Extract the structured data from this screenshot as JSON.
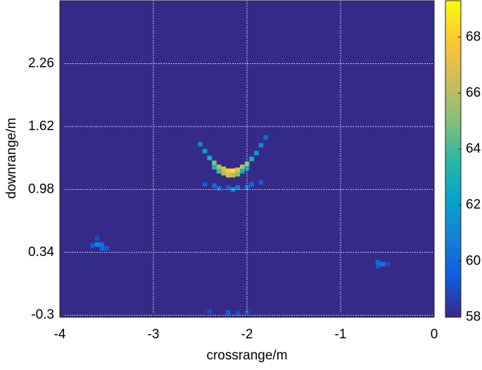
{
  "chart_data": {
    "type": "heatmap",
    "xlabel": "crossrange/m",
    "ylabel": "downrange/m",
    "xlim": [
      -4,
      0
    ],
    "xticks": [
      -4,
      -3,
      -2,
      -1,
      0
    ],
    "ylim": [
      -0.32,
      2.9
    ],
    "yticks": [
      -0.3,
      0.34,
      0.98,
      1.62,
      2.26
    ],
    "clim": [
      58,
      69.3
    ],
    "cticks": [
      58,
      60,
      62,
      64,
      66,
      68
    ],
    "grid": true,
    "colormap": [
      "#352a87",
      "#0f5cdd",
      "#1481d6",
      "#06a4ca",
      "#2eb7a4",
      "#87bf77",
      "#d1bb59",
      "#fec832",
      "#f9fb0e"
    ],
    "cells": {
      "x": [
        -2.5,
        -2.45,
        -2.4,
        -2.35,
        -2.3,
        -2.25,
        -2.2,
        -2.15,
        -2.1,
        -2.05,
        -2.0,
        -1.95,
        -1.9,
        -1.85,
        -1.8,
        -2.35,
        -2.3,
        -2.25,
        -2.2,
        -2.15,
        -2.1,
        -2.05,
        -2.0,
        -2.45,
        -2.35,
        -2.3,
        -2.2,
        -2.1,
        -2.0,
        -1.95,
        -1.85,
        -2.15,
        -3.6,
        -3.55,
        -3.65,
        -3.55,
        -3.5,
        -3.6,
        -0.6,
        -0.55,
        -0.6,
        -0.5,
        -2.4,
        -2.2,
        -2.1,
        -2.0
      ],
      "y": [
        1.44,
        1.37,
        1.3,
        1.25,
        1.21,
        1.19,
        1.17,
        1.17,
        1.18,
        1.21,
        1.24,
        1.29,
        1.35,
        1.43,
        1.51,
        1.205,
        1.165,
        1.145,
        1.125,
        1.125,
        1.135,
        1.165,
        1.195,
        1.03,
        1.02,
        0.99,
        1.0,
        1.0,
        1.0,
        1.03,
        1.05,
        0.98,
        0.42,
        0.42,
        0.41,
        0.38,
        0.38,
        0.48,
        0.24,
        0.22,
        0.2,
        0.22,
        -0.26,
        -0.27,
        -0.28,
        -0.27
      ],
      "values": [
        61,
        62,
        63,
        65,
        66,
        67,
        68,
        68.5,
        67,
        66,
        65,
        63,
        62,
        61,
        60,
        63,
        64,
        66,
        67,
        66,
        65,
        63,
        62,
        59.5,
        60,
        60,
        59.5,
        60.5,
        60,
        60,
        59.5,
        61,
        61,
        60,
        59.5,
        60,
        59.5,
        59,
        60,
        60.5,
        59.5,
        59,
        59,
        59.5,
        59,
        59
      ]
    }
  }
}
